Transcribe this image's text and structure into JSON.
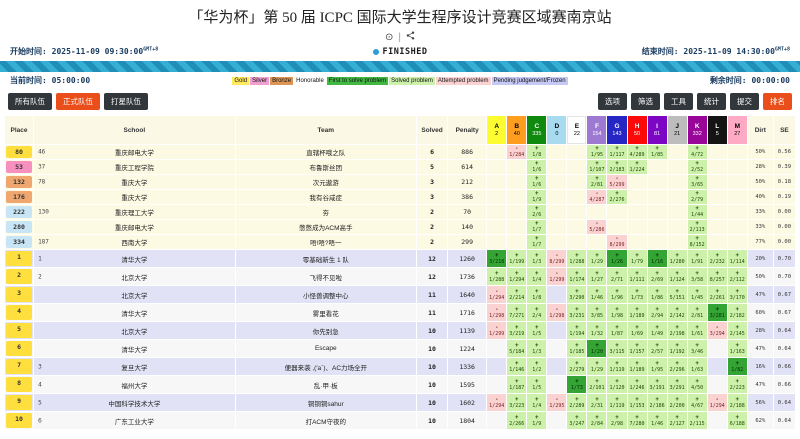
{
  "title": "「华为杯」第 50 届 ICPC 国际大学生程序设计竞赛区域赛南京站",
  "times": {
    "start_label": "开始时间:",
    "start": "2025-11-09 09:30:00",
    "tz": "GMT+8",
    "status": "FINISHED",
    "end_label": "结束时间:",
    "end": "2025-11-09 14:30:00",
    "current_label": "当前时间:",
    "current": "05:00:00",
    "remain_label": "剩余时间:",
    "remain": "00:00:00"
  },
  "legend": [
    {
      "label": "Gold",
      "bg": "#ffe95e"
    },
    {
      "label": "Silver",
      "bg": "#f0a0d0"
    },
    {
      "label": "Bronze",
      "bg": "#dd9556"
    },
    {
      "label": "Honorable",
      "bg": "transparent"
    },
    {
      "label": "First to solve problem",
      "bg": "#42b842"
    },
    {
      "label": "Solved problem",
      "bg": "#cdf0aa"
    },
    {
      "label": "Attempted problem",
      "bg": "#fad2d2"
    },
    {
      "label": "Pending judgement/Frozen",
      "bg": "#c6c9f5"
    }
  ],
  "filter_buttons": [
    {
      "label": "所有队伍",
      "active": false
    },
    {
      "label": "正式队伍",
      "active": true
    },
    {
      "label": "打星队伍",
      "active": false
    }
  ],
  "action_buttons": [
    {
      "label": "选项",
      "active": false
    },
    {
      "label": "筛选",
      "active": false
    },
    {
      "label": "工具",
      "active": false
    },
    {
      "label": "统计",
      "active": false
    },
    {
      "label": "提交",
      "active": false
    },
    {
      "label": "排名",
      "active": true
    }
  ],
  "table": {
    "headers": {
      "place": "Place",
      "school": "School",
      "team": "Team",
      "solved": "Solved",
      "penalty": "Penalty",
      "dirt": "Dirt",
      "se": "SE"
    },
    "problems": [
      {
        "id": "A",
        "count": "2",
        "bg": "#fcfc30",
        "fg": "#000000"
      },
      {
        "id": "B",
        "count": "40",
        "bg": "#ff9d1f",
        "fg": "#000000"
      },
      {
        "id": "C",
        "count": "335",
        "bg": "#0f8a0f",
        "fg": "#ffffff"
      },
      {
        "id": "D",
        "count": "0",
        "bg": "#a8daf0",
        "fg": "#000000"
      },
      {
        "id": "E",
        "count": "22",
        "bg": "#ffffff",
        "fg": "#000000"
      },
      {
        "id": "F",
        "count": "154",
        "bg": "#9d79d2",
        "fg": "#ffffff"
      },
      {
        "id": "G",
        "count": "143",
        "bg": "#2626c4",
        "fg": "#ffffff"
      },
      {
        "id": "H",
        "count": "50",
        "bg": "#fc0a0a",
        "fg": "#ffffff"
      },
      {
        "id": "I",
        "count": "81",
        "bg": "#7d05c4",
        "fg": "#ffffff"
      },
      {
        "id": "J",
        "count": "21",
        "bg": "#bdbdbd",
        "fg": "#000000"
      },
      {
        "id": "K",
        "count": "332",
        "bg": "#990599",
        "fg": "#ffffff"
      },
      {
        "id": "L",
        "count": "5",
        "bg": "#141414",
        "fg": "#ffffff"
      },
      {
        "id": "M",
        "count": "27",
        "bg": "#ffaac4",
        "fg": "#000000"
      }
    ],
    "rows": [
      {
        "type": "pinned",
        "place": "80",
        "badge": "gold",
        "srank": "46",
        "school": "重庆邮电大学",
        "team": "直辖杯哦之队",
        "solved": "6",
        "penalty": "886",
        "dirt": "50%",
        "se": "0.56",
        "cells": {
          "B": [
            "att",
            "1/284"
          ],
          "C": [
            "ok",
            "1/8"
          ],
          "F": [
            "ok",
            "1/95"
          ],
          "G": [
            "ok",
            "1/117"
          ],
          "H": [
            "ok",
            "4/289"
          ],
          "I": [
            "ok",
            "1/85"
          ],
          "K": [
            "ok",
            "4/72"
          ]
        }
      },
      {
        "type": "pinned",
        "place": "53",
        "badge": "silver",
        "srank": "37",
        "school": "重庆工程学院",
        "team": "布鲁斯丝团",
        "solved": "5",
        "penalty": "614",
        "dirt": "28%",
        "se": "0.39",
        "cells": {
          "C": [
            "ok",
            "1/6"
          ],
          "F": [
            "ok",
            "1/107"
          ],
          "G": [
            "ok",
            "2/183"
          ],
          "H": [
            "ok",
            "1/224"
          ],
          "K": [
            "ok",
            "2/52"
          ]
        }
      },
      {
        "type": "pinned",
        "place": "132",
        "badge": "bronze",
        "srank": "78",
        "school": "重庆大学",
        "team": "次元遨游",
        "solved": "3",
        "penalty": "212",
        "dirt": "50%",
        "se": "0.18",
        "cells": {
          "C": [
            "ok",
            "1/6"
          ],
          "F": [
            "ok",
            "2/81"
          ],
          "G": [
            "att",
            "5/299"
          ],
          "K": [
            "ok",
            "3/65"
          ]
        }
      },
      {
        "type": "pinned",
        "place": "176",
        "badge": "bronze",
        "srank": "",
        "school": "重庆大学",
        "team": "我有谷咸症",
        "solved": "3",
        "penalty": "386",
        "dirt": "40%",
        "se": "0.19",
        "cells": {
          "C": [
            "ok",
            "1/9"
          ],
          "F": [
            "att",
            "4/287"
          ],
          "G": [
            "ok",
            "2/276"
          ],
          "K": [
            "ok",
            "2/79"
          ]
        }
      },
      {
        "type": "pinned",
        "place": "222",
        "badge": "blue",
        "srank": "130",
        "school": "重庆理工大学",
        "team": "夯",
        "solved": "2",
        "penalty": "70",
        "dirt": "33%",
        "se": "0.00",
        "cells": {
          "C": [
            "ok",
            "2/6"
          ],
          "K": [
            "ok",
            "1/44"
          ]
        }
      },
      {
        "type": "pinned",
        "place": "280",
        "badge": "blue",
        "srank": "",
        "school": "重庆邮电大学",
        "team": "憋憋成为ACM高手",
        "solved": "2",
        "penalty": "140",
        "dirt": "33%",
        "se": "0.00",
        "cells": {
          "C": [
            "ok",
            "1/7"
          ],
          "F": [
            "att",
            "5/286"
          ],
          "K": [
            "ok",
            "2/113"
          ]
        }
      },
      {
        "type": "pinned",
        "place": "334",
        "badge": "blue",
        "srank": "187",
        "school": "西南大学",
        "team": "唔!唔?唔一",
        "solved": "2",
        "penalty": "299",
        "dirt": "77%",
        "se": "0.00",
        "cells": {
          "C": [
            "ok",
            "1/7"
          ],
          "G": [
            "att",
            "8/299"
          ],
          "K": [
            "ok",
            "8/152"
          ]
        }
      },
      {
        "type": "odd",
        "place": "1",
        "badge": "gold",
        "srank": "1",
        "school": "清华大学",
        "team": "零基础新生 1 队",
        "solved": "12",
        "penalty": "1260",
        "dirt": "20%",
        "se": "0.70",
        "cells": {
          "A": [
            "fts",
            "3/218"
          ],
          "B": [
            "ok",
            "1/199"
          ],
          "C": [
            "ok",
            "1/3"
          ],
          "D": [
            "att",
            "8/299"
          ],
          "E": [
            "ok",
            "1/288"
          ],
          "F": [
            "ok",
            "1/29"
          ],
          "G": [
            "fts",
            "1/26"
          ],
          "H": [
            "ok",
            "1/79"
          ],
          "I": [
            "fts",
            "1/16"
          ],
          "J": [
            "ok",
            "1/280"
          ],
          "K": [
            "ok",
            "1/91"
          ],
          "L": [
            "ok",
            "2/232"
          ],
          "M": [
            "ok",
            "1/114"
          ]
        }
      },
      {
        "type": "even",
        "place": "2",
        "badge": "gold",
        "srank": "2",
        "school": "北京大学",
        "team": "飞得不见啦",
        "solved": "12",
        "penalty": "1736",
        "dirt": "50%",
        "se": "0.70",
        "cells": {
          "A": [
            "ok",
            "1/288"
          ],
          "B": [
            "ok",
            "1/294"
          ],
          "C": [
            "ok",
            "1/4"
          ],
          "D": [
            "att",
            "1/299"
          ],
          "E": [
            "ok",
            "1/174"
          ],
          "F": [
            "ok",
            "1/27"
          ],
          "G": [
            "ok",
            "2/71"
          ],
          "H": [
            "ok",
            "1/111"
          ],
          "I": [
            "ok",
            "2/69"
          ],
          "J": [
            "ok",
            "1/124"
          ],
          "K": [
            "ok",
            "3/58"
          ],
          "L": [
            "ok",
            "8/257"
          ],
          "M": [
            "ok",
            "2/112"
          ]
        }
      },
      {
        "type": "odd",
        "place": "3",
        "badge": "gold",
        "srank": "",
        "school": "北京大学",
        "team": "小怪兽调整中心",
        "solved": "11",
        "penalty": "1640",
        "dirt": "47%",
        "se": "0.67",
        "cells": {
          "A": [
            "att",
            "1/294"
          ],
          "B": [
            "ok",
            "2/214"
          ],
          "C": [
            "ok",
            "1/8"
          ],
          "E": [
            "ok",
            "3/290"
          ],
          "F": [
            "ok",
            "1/46"
          ],
          "G": [
            "ok",
            "1/96"
          ],
          "H": [
            "ok",
            "1/73"
          ],
          "I": [
            "ok",
            "1/86"
          ],
          "J": [
            "ok",
            "5/151"
          ],
          "K": [
            "ok",
            "1/45"
          ],
          "L": [
            "ok",
            "2/261"
          ],
          "M": [
            "ok",
            "3/170"
          ]
        }
      },
      {
        "type": "even",
        "place": "4",
        "badge": "gold",
        "srank": "",
        "school": "清华大学",
        "team": "雾里看花",
        "solved": "11",
        "penalty": "1716",
        "dirt": "60%",
        "se": "0.67",
        "cells": {
          "A": [
            "att",
            "1/298"
          ],
          "B": [
            "ok",
            "7/271"
          ],
          "C": [
            "ok",
            "2/4"
          ],
          "D": [
            "att",
            "1/298"
          ],
          "E": [
            "ok",
            "3/231"
          ],
          "F": [
            "ok",
            "3/85"
          ],
          "G": [
            "ok",
            "1/98"
          ],
          "H": [
            "ok",
            "1/189"
          ],
          "I": [
            "ok",
            "2/94"
          ],
          "J": [
            "ok",
            "2/142"
          ],
          "K": [
            "ok",
            "2/81"
          ],
          "L": [
            "fts",
            "3/281"
          ],
          "M": [
            "ok",
            "2/182"
          ]
        }
      },
      {
        "type": "odd",
        "place": "5",
        "badge": "gold",
        "srank": "",
        "school": "北京大学",
        "team": "你先别急",
        "solved": "10",
        "penalty": "1139",
        "dirt": "28%",
        "se": "0.64",
        "cells": {
          "A": [
            "att",
            "1/299"
          ],
          "B": [
            "ok",
            "3/219"
          ],
          "C": [
            "ok",
            "1/5"
          ],
          "E": [
            "ok",
            "1/194"
          ],
          "F": [
            "ok",
            "1/32"
          ],
          "G": [
            "ok",
            "1/87"
          ],
          "H": [
            "ok",
            "1/69"
          ],
          "I": [
            "ok",
            "1/49"
          ],
          "J": [
            "ok",
            "2/198"
          ],
          "K": [
            "ok",
            "1/61"
          ],
          "L": [
            "att",
            "3/294"
          ],
          "M": [
            "ok",
            "2/145"
          ]
        }
      },
      {
        "type": "even",
        "place": "6",
        "badge": "gold",
        "srank": "",
        "school": "清华大学",
        "team": "Escape",
        "solved": "10",
        "penalty": "1224",
        "dirt": "47%",
        "se": "0.64",
        "cells": {
          "B": [
            "ok",
            "5/184"
          ],
          "C": [
            "ok",
            "1/3"
          ],
          "E": [
            "ok",
            "1/185"
          ],
          "F": [
            "fts",
            "1/20"
          ],
          "G": [
            "ok",
            "3/115"
          ],
          "H": [
            "ok",
            "1/157"
          ],
          "I": [
            "ok",
            "2/57"
          ],
          "J": [
            "ok",
            "1/192"
          ],
          "K": [
            "ok",
            "3/46"
          ],
          "M": [
            "ok",
            "1/163"
          ]
        }
      },
      {
        "type": "odd",
        "place": "7",
        "badge": "gold",
        "srank": "3",
        "school": "复旦大学",
        "team": "便器来袭 ,(′а`)、AC力场全开",
        "solved": "10",
        "penalty": "1336",
        "dirt": "16%",
        "se": "0.66",
        "cells": {
          "B": [
            "ok",
            "1/146"
          ],
          "C": [
            "ok",
            "1/2"
          ],
          "E": [
            "ok",
            "2/279"
          ],
          "F": [
            "ok",
            "1/29"
          ],
          "G": [
            "ok",
            "1/119"
          ],
          "H": [
            "ok",
            "1/189"
          ],
          "I": [
            "ok",
            "1/95"
          ],
          "J": [
            "ok",
            "2/296"
          ],
          "K": [
            "ok",
            "1/63"
          ],
          "M": [
            "fts",
            "1/82"
          ]
        }
      },
      {
        "type": "even",
        "place": "8",
        "badge": "gold",
        "srank": "4",
        "school": "福州大学",
        "team": "乱·甲·板",
        "solved": "10",
        "penalty": "1595",
        "dirt": "47%",
        "se": "0.66",
        "cells": {
          "B": [
            "ok",
            "1/187"
          ],
          "C": [
            "ok",
            "1/5"
          ],
          "E": [
            "fts",
            "1/73"
          ],
          "F": [
            "ok",
            "2/101"
          ],
          "G": [
            "ok",
            "1/120"
          ],
          "H": [
            "ok",
            "1/246"
          ],
          "I": [
            "ok",
            "3/191"
          ],
          "J": [
            "ok",
            "3/291"
          ],
          "K": [
            "ok",
            "4/50"
          ],
          "M": [
            "ok",
            "2/223"
          ]
        }
      },
      {
        "type": "odd",
        "place": "9",
        "badge": "gold",
        "srank": "5",
        "school": "中国科学技术大学",
        "team": "铜铜铜sahur",
        "solved": "10",
        "penalty": "1602",
        "dirt": "56%",
        "se": "0.64",
        "cells": {
          "A": [
            "att",
            "1/294"
          ],
          "B": [
            "ok",
            "3/223"
          ],
          "C": [
            "ok",
            "1/4"
          ],
          "D": [
            "att",
            "1/295"
          ],
          "E": [
            "ok",
            "2/289"
          ],
          "F": [
            "ok",
            "2/31"
          ],
          "G": [
            "ok",
            "1/119"
          ],
          "H": [
            "ok",
            "1/153"
          ],
          "I": [
            "ok",
            "2/186"
          ],
          "J": [
            "ok",
            "2/200"
          ],
          "K": [
            "ok",
            "4/67"
          ],
          "L": [
            "att",
            "1/294"
          ],
          "M": [
            "ok",
            "2/188"
          ]
        }
      },
      {
        "type": "even",
        "place": "10",
        "badge": "gold",
        "srank": "6",
        "school": "广东工业大学",
        "team": "打ACM守夜的",
        "solved": "10",
        "penalty": "1804",
        "dirt": "62%",
        "se": "0.64",
        "cells": {
          "B": [
            "ok",
            "2/266"
          ],
          "C": [
            "ok",
            "1/9"
          ],
          "E": [
            "ok",
            "3/247"
          ],
          "F": [
            "ok",
            "2/84"
          ],
          "G": [
            "ok",
            "2/98"
          ],
          "H": [
            "ok",
            "7/280"
          ],
          "I": [
            "ok",
            "1/46"
          ],
          "J": [
            "ok",
            "2/127"
          ],
          "K": [
            "ok",
            "2/115"
          ],
          "M": [
            "ok",
            "6/188"
          ]
        }
      }
    ]
  }
}
